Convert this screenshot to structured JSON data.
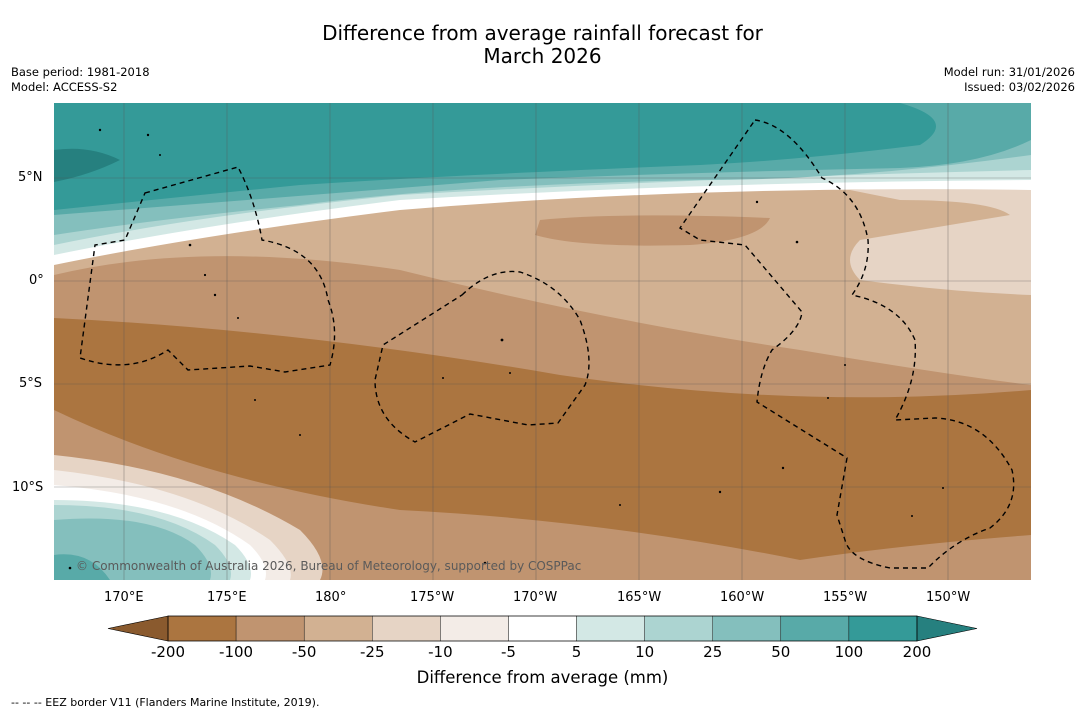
{
  "title_line1": "Difference from average rainfall forecast for",
  "title_line2": "March 2026",
  "base_period": "Base period: 1981-2018",
  "model": "Model: ACCESS-S2",
  "model_run": "Model run: 31/01/2026",
  "issued": "Issued: 03/02/2026",
  "copyright": "© Commonwealth of Australia 2026, Bureau of Meteorology, supported by COSPPac",
  "lat_labels": [
    "5°N",
    "0°",
    "5°S",
    "10°S"
  ],
  "lon_labels": [
    "170°E",
    "175°E",
    "180°",
    "175°W",
    "170°W",
    "165°W",
    "160°W",
    "155°W",
    "150°W"
  ],
  "colorbar": {
    "title": "Difference from average (mm)",
    "ticks": [
      "-200",
      "-100",
      "-50",
      "-25",
      "-10",
      "-5",
      "5",
      "10",
      "25",
      "50",
      "100",
      "200"
    ],
    "colors": [
      "#8a5a2e",
      "#ab7540",
      "#c09470",
      "#d2b192",
      "#e6d4c5",
      "#f3ece7",
      "#ffffff",
      "#d3e8e5",
      "#acd4d1",
      "#84bfbd",
      "#58aaa8",
      "#349a98",
      "#26807f"
    ]
  },
  "footnote": "--  --  -- EEZ border V11 (Flanders Marine Institute, 2019)."
}
